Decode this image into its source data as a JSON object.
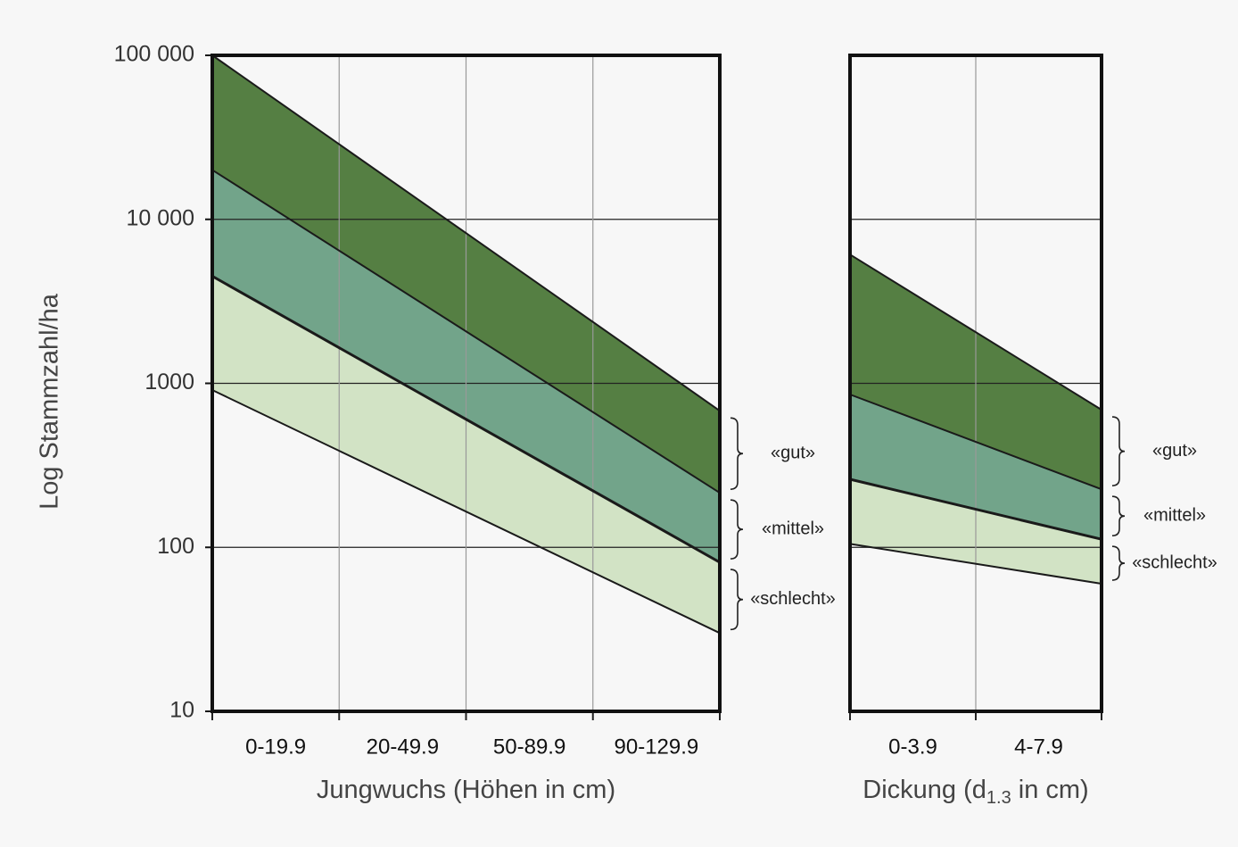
{
  "chart_data": [
    {
      "type": "band",
      "ylabel": "Log Stammzahl/ha",
      "xlabel_parts": [
        "Jungwuchs (Höhen in cm)"
      ],
      "categories": [
        "0-19.9",
        "20-49.9",
        "50-89.9",
        "90-129.9"
      ],
      "x": [
        0,
        4
      ],
      "xlim": [
        0,
        4
      ],
      "xticks": [
        0,
        1,
        2,
        3,
        4
      ],
      "ylim": [
        10,
        100000
      ],
      "log_y": true,
      "show_ytick_labels": true,
      "yticks": [
        {
          "value": 100000,
          "label": "100 000"
        },
        {
          "value": 10000,
          "label": "10 000"
        },
        1000,
        100,
        10
      ],
      "grid": true,
      "series": [
        {
          "color": "#1a1a1a",
          "values": [
            100000,
            680
          ]
        },
        {
          "color": "#1a1a1a",
          "values": [
            20000,
            215
          ]
        },
        {
          "color": "#1a1a1a",
          "values": [
            4500,
            81
          ]
        },
        {
          "color": "#1a1a1a",
          "values": [
            910,
            30
          ]
        }
      ],
      "bands": [
        {
          "label": "«gut»",
          "color": "#557f43"
        },
        {
          "label": "«mittel»",
          "color": "#72a48a"
        },
        {
          "label": "«schlecht»",
          "color": "#d2e3c5"
        }
      ]
    },
    {
      "type": "band",
      "xlabel_parts": [
        "Dickung (d",
        "1.3",
        " in cm)"
      ],
      "categories": [
        "0-3.9",
        "4-7.9"
      ],
      "x": [
        0,
        2
      ],
      "xlim": [
        0,
        2
      ],
      "xticks": [
        0,
        1,
        2
      ],
      "ylim": [
        10,
        100000
      ],
      "log_y": true,
      "show_ytick_labels": false,
      "yticks": [
        10000,
        1000,
        100
      ],
      "grid": true,
      "series": [
        {
          "color": "#1a1a1a",
          "values": [
            6100,
            690
          ]
        },
        {
          "color": "#1a1a1a",
          "values": [
            855,
            226
          ]
        },
        {
          "color": "#1a1a1a",
          "values": [
            260,
            112
          ]
        },
        {
          "color": "#1a1a1a",
          "values": [
            105,
            60
          ]
        }
      ],
      "bands": [
        {
          "label": "«gut»",
          "color": "#557f43"
        },
        {
          "label": "«mittel»",
          "color": "#72a48a"
        },
        {
          "label": "«schlecht»",
          "color": "#d2e3c5"
        }
      ]
    }
  ]
}
